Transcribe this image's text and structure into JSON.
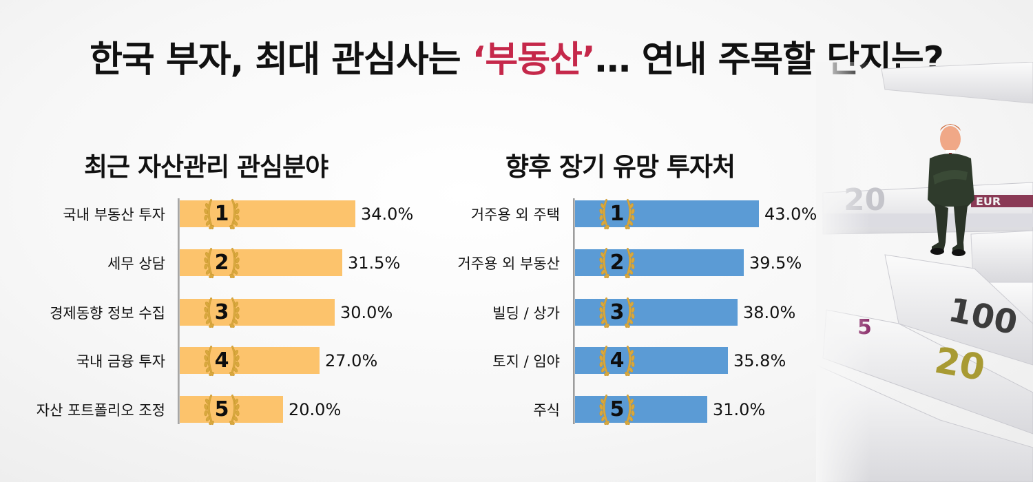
{
  "header": {
    "title_pre": "한국 부자, 최대 관심사는 ",
    "title_accent": "‘부동산’",
    "title_post": "… 연내 주목할 단지는?",
    "accent_color": "#c5284a"
  },
  "chart_data": [
    {
      "type": "bar",
      "orientation": "horizontal",
      "title": "최근 자산관리 관심분야",
      "categories": [
        "국내 부동산 투자",
        "세무 상담",
        "경제동향 정보 수집",
        "국내 금융 투자",
        "자산 포트폴리오 조정"
      ],
      "ranks": [
        "1",
        "2",
        "3",
        "4",
        "5"
      ],
      "values": [
        34.0,
        31.5,
        30.0,
        27.0,
        20.0
      ],
      "value_labels": [
        "34.0%",
        "31.5%",
        "30.0%",
        "27.0%",
        "20.0%"
      ],
      "unit": "%",
      "color": "#fcc36c",
      "grid": false,
      "legend": "none"
    },
    {
      "type": "bar",
      "orientation": "horizontal",
      "title": "향후 장기 유망 투자처",
      "categories": [
        "거주용 외 주택",
        "거주용 외 부동산",
        "빌딩 / 상가",
        "토지 / 임야",
        "주식"
      ],
      "ranks": [
        "1",
        "2",
        "3",
        "4",
        "5"
      ],
      "values": [
        43.0,
        39.5,
        38.0,
        35.8,
        31.0
      ],
      "value_labels": [
        "43.0%",
        "39.5%",
        "38.0%",
        "35.8%",
        "31.0%"
      ],
      "unit": "%",
      "color": "#5b9bd5",
      "grid": false,
      "legend": "none"
    }
  ],
  "icons": {
    "rank_badge": "laurel-wreath-icon",
    "photo": "figurine-on-euro-banknotes"
  }
}
